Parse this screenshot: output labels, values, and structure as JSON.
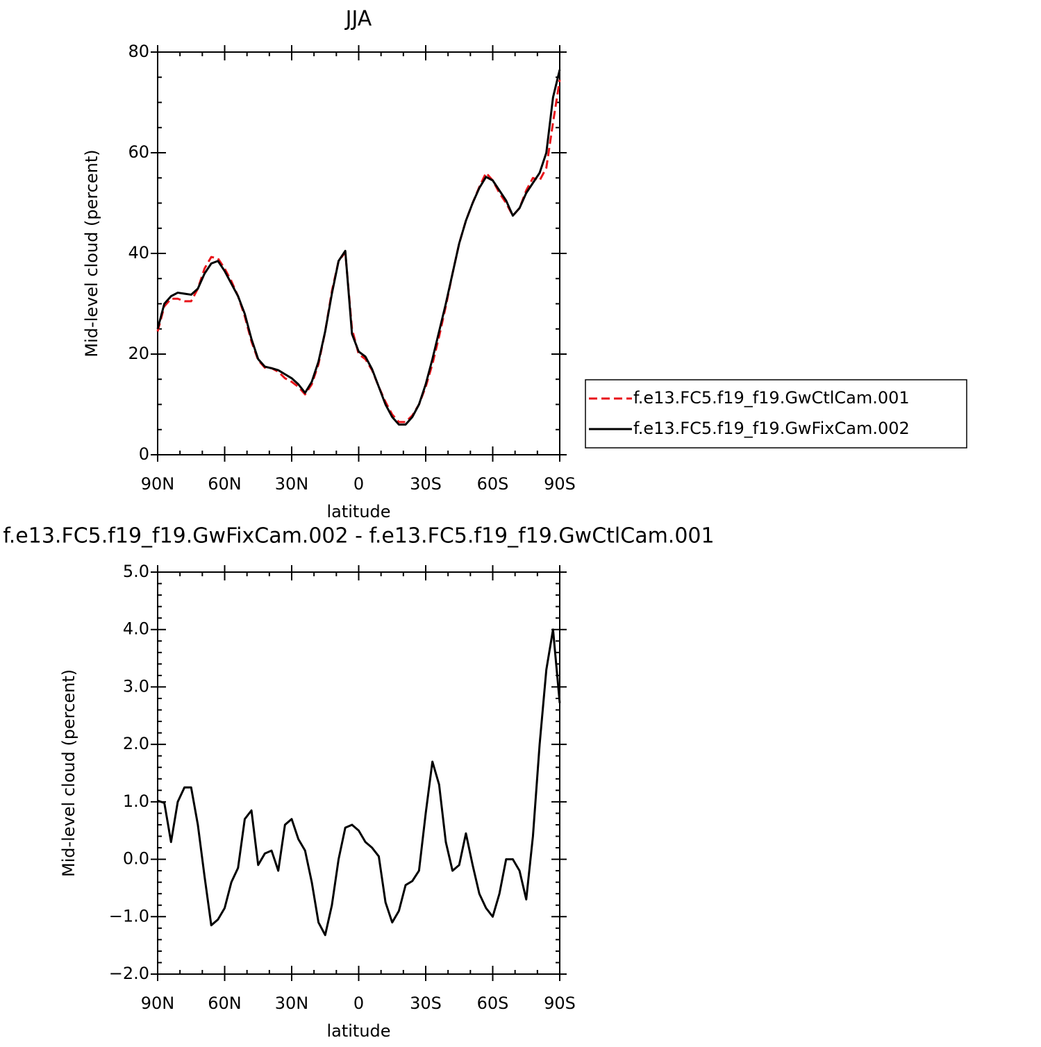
{
  "chart_data": [
    {
      "type": "line",
      "title": "JJA",
      "xlabel": "latitude",
      "ylabel": "Mid-level cloud (percent)",
      "x": [
        90,
        87,
        84,
        81,
        78,
        75,
        72,
        69,
        66,
        63,
        60,
        57,
        54,
        51,
        48,
        45,
        42,
        39,
        36,
        33,
        30,
        27,
        24,
        21,
        18,
        15,
        12,
        9,
        6,
        3,
        0,
        -3,
        -6,
        -9,
        -12,
        -15,
        -18,
        -21,
        -24,
        -27,
        -30,
        -33,
        -36,
        -39,
        -42,
        -45,
        -48,
        -51,
        -54,
        -57,
        -60,
        -63,
        -66,
        -69,
        -72,
        -75,
        -78,
        -81,
        -84,
        -87,
        -90
      ],
      "xlim": [
        90,
        -90
      ],
      "xticks": [
        {
          "value": 90,
          "label": "90N"
        },
        {
          "value": 60,
          "label": "60N"
        },
        {
          "value": 30,
          "label": "30N"
        },
        0,
        {
          "value": -30,
          "label": "30S"
        },
        {
          "value": -60,
          "label": "60S"
        },
        {
          "value": -90,
          "label": "90S"
        }
      ],
      "ylim": [
        0,
        80
      ],
      "yticks": [
        0,
        20,
        40,
        60,
        80
      ],
      "legend": "right",
      "series": [
        {
          "name": "f.e13.FC5.f19_f19.GwCtlCam.001",
          "color": "#e8141a",
          "linestyle": "dashed",
          "values": [
            24.5,
            29.5,
            31,
            31,
            30.5,
            30.5,
            33,
            37,
            39.3,
            39,
            37,
            34.5,
            31.5,
            27.5,
            22.5,
            18.8,
            17.3,
            17.2,
            16.5,
            15.2,
            14.5,
            13.5,
            12,
            14,
            18,
            24.5,
            32.5,
            38.5,
            40.2,
            25,
            20,
            19,
            16.8,
            13.5,
            10.5,
            8,
            6.5,
            6.5,
            7.8,
            10,
            13.5,
            18,
            23.5,
            29.5,
            36,
            42,
            46.5,
            50,
            53.2,
            56,
            54.5,
            52,
            50,
            47.5,
            49,
            52.5,
            55,
            54.5,
            57,
            66,
            74.5
          ]
        },
        {
          "name": "f.e13.FC5.f19_f19.GwFixCam.002",
          "color": "#000000",
          "linestyle": "solid",
          "values": [
            25,
            30,
            31.5,
            32.2,
            32,
            31.8,
            33,
            36,
            38,
            38.5,
            36.5,
            34,
            31.5,
            28,
            23,
            19,
            17.5,
            17.2,
            16.8,
            16,
            15.2,
            14,
            12.3,
            14.5,
            18.5,
            24.5,
            32,
            38.5,
            40.5,
            24,
            20.5,
            19.5,
            17,
            13.5,
            10,
            7.5,
            6,
            6,
            7.5,
            10,
            14,
            19,
            24.5,
            30,
            36,
            42,
            46.5,
            50,
            53,
            55.2,
            54.5,
            52.5,
            50.5,
            47.5,
            49,
            52,
            54,
            56,
            60,
            71,
            76.5
          ]
        }
      ]
    },
    {
      "type": "line",
      "title": "f.e13.FC5.f19_f19.GwFixCam.002 - f.e13.FC5.f19_f19.GwCtlCam.001",
      "xlabel": "latitude",
      "ylabel": "Mid-level cloud (percent)",
      "x": [
        90,
        87,
        84,
        81,
        78,
        75,
        72,
        69,
        66,
        63,
        60,
        57,
        54,
        51,
        48,
        45,
        42,
        39,
        36,
        33,
        30,
        27,
        24,
        21,
        18,
        15,
        12,
        9,
        6,
        3,
        0,
        -3,
        -6,
        -9,
        -12,
        -15,
        -18,
        -21,
        -24,
        -27,
        -30,
        -33,
        -36,
        -39,
        -42,
        -45,
        -48,
        -51,
        -54,
        -57,
        -60,
        -63,
        -66,
        -69,
        -72,
        -75,
        -78,
        -81,
        -84,
        -87,
        -90
      ],
      "xlim": [
        90,
        -90
      ],
      "xticks": [
        {
          "value": 90,
          "label": "90N"
        },
        {
          "value": 60,
          "label": "60N"
        },
        {
          "value": 30,
          "label": "30N"
        },
        0,
        {
          "value": -30,
          "label": "30S"
        },
        {
          "value": -60,
          "label": "60S"
        },
        {
          "value": -90,
          "label": "90S"
        }
      ],
      "ylim": [
        -2,
        5
      ],
      "yticks": [
        {
          "value": -2,
          "label": "−2.0"
        },
        {
          "value": -1,
          "label": "−1.0"
        },
        {
          "value": 0,
          "label": "0.0"
        },
        {
          "value": 1,
          "label": "1.0"
        },
        {
          "value": 2,
          "label": "2.0"
        },
        {
          "value": 3,
          "label": "3.0"
        },
        {
          "value": 4,
          "label": "4.0"
        },
        {
          "value": 5,
          "label": "5.0"
        }
      ],
      "color": "#000000",
      "values": [
        1.02,
        0.98,
        0.3,
        1.0,
        1.25,
        1.25,
        0.6,
        -0.3,
        -1.15,
        -1.05,
        -0.85,
        -0.4,
        -0.15,
        0.7,
        0.85,
        -0.1,
        0.1,
        0.15,
        -0.2,
        0.6,
        0.7,
        0.35,
        0.15,
        -0.4,
        -1.1,
        -1.32,
        -0.8,
        0.0,
        0.55,
        0.6,
        0.5,
        0.3,
        0.2,
        0.05,
        -0.75,
        -1.1,
        -0.9,
        -0.45,
        -0.38,
        -0.2,
        0.8,
        1.7,
        1.3,
        0.3,
        -0.2,
        -0.1,
        0.45,
        -0.1,
        -0.6,
        -0.85,
        -1.0,
        -0.6,
        0.0,
        0.0,
        -0.2,
        -0.7,
        0.4,
        2.0,
        3.3,
        4.0,
        2.72
      ]
    }
  ]
}
